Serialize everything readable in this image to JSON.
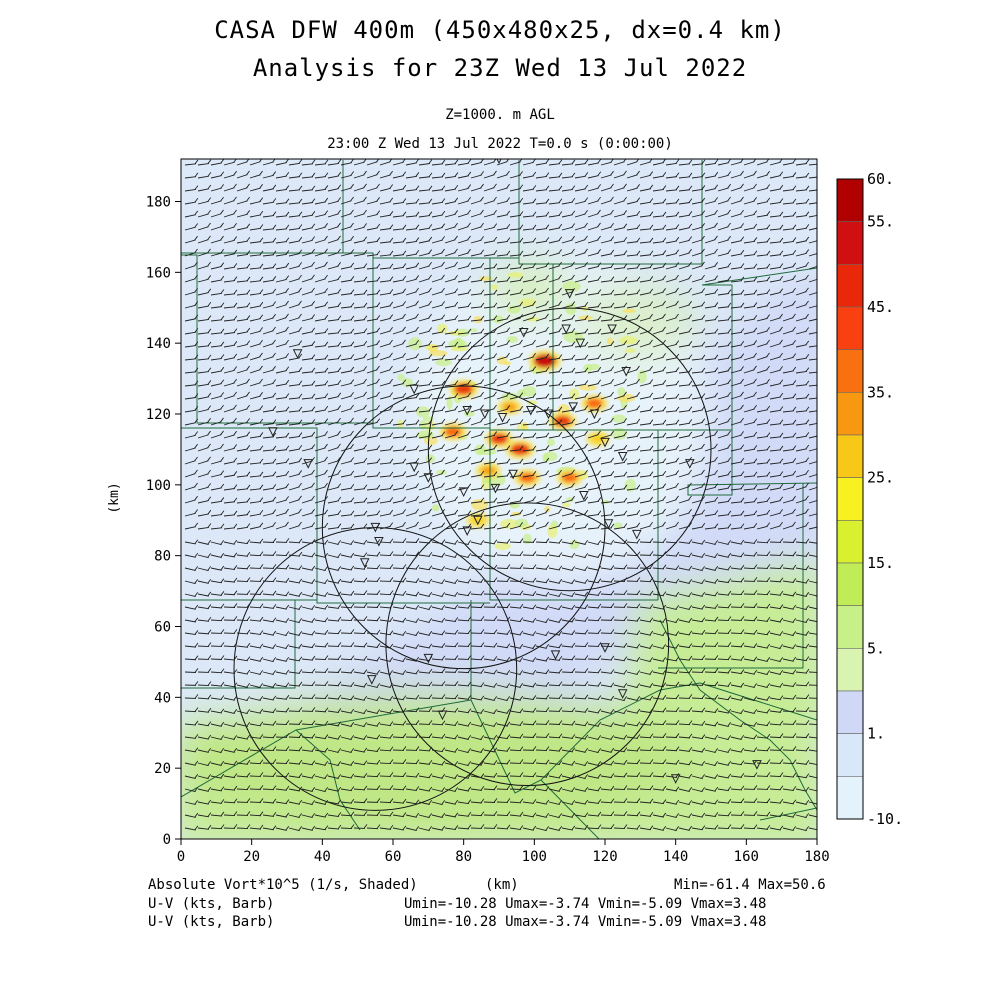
{
  "header": {
    "title1": "CASA DFW 400m (450x480x25, dx=0.4 km)",
    "title2": "Analysis for 23Z Wed 13 Jul 2022",
    "level": "Z=1000. m AGL",
    "time": "23:00 Z Wed 13 Jul 2022   T=0.0 s (0:00:00)"
  },
  "footer": {
    "field": "Absolute Vort*10^5 (1/s, Shaded)",
    "xunit": "(km)",
    "minmax": "Min=-61.4 Max=50.6",
    "barb1_name": "U-V (kts, Barb)",
    "barb1_stats": "Umin=-10.28 Umax=-3.74 Vmin=-5.09 Vmax=3.48",
    "barb2_name": "U-V (kts, Barb)",
    "barb2_stats": "Umin=-10.28 Umax=-3.74 Vmin=-5.09 Vmax=3.48"
  },
  "chart_data": {
    "type": "heatmap",
    "xlabel": "",
    "ylabel": "(km)",
    "xlim": [
      0,
      180
    ],
    "ylim": [
      0,
      192
    ],
    "xticks": [
      0,
      20,
      40,
      60,
      80,
      100,
      120,
      140,
      160,
      180
    ],
    "yticks": [
      0,
      20,
      40,
      60,
      80,
      100,
      120,
      140,
      160,
      180
    ],
    "colorbar": {
      "labels": [
        "60.",
        "55.",
        "45.",
        "35.",
        "25.",
        "15.",
        "5.",
        "1.",
        "-10."
      ],
      "colors": [
        "#b00000",
        "#d01010",
        "#e82808",
        "#f84010",
        "#f87010",
        "#f89810",
        "#f8c818",
        "#f8f020",
        "#d8f030",
        "#c0ec58",
        "#c8f088",
        "#d8f4b0",
        "#d0d8f8",
        "#d8e8f8",
        "#e4f2fb"
      ]
    },
    "radar_rings": [
      {
        "center_x": 110,
        "center_y": 110,
        "radius": 40
      },
      {
        "center_x": 80,
        "center_y": 88,
        "radius": 40
      },
      {
        "center_x": 98,
        "center_y": 55,
        "radius": 40
      },
      {
        "center_x": 55,
        "center_y": 48,
        "radius": 40
      }
    ],
    "stations": [
      [
        90,
        192
      ],
      [
        110,
        154
      ],
      [
        109,
        144
      ],
      [
        113,
        140
      ],
      [
        122,
        144
      ],
      [
        97,
        143
      ],
      [
        33,
        137
      ],
      [
        126,
        132
      ],
      [
        66,
        127
      ],
      [
        81,
        121
      ],
      [
        86,
        120
      ],
      [
        91,
        119
      ],
      [
        99,
        121
      ],
      [
        104,
        120
      ],
      [
        111,
        122
      ],
      [
        117,
        120
      ],
      [
        26,
        115
      ],
      [
        120,
        112
      ],
      [
        36,
        106
      ],
      [
        66,
        105
      ],
      [
        70,
        102
      ],
      [
        94,
        103
      ],
      [
        89,
        99
      ],
      [
        80,
        98
      ],
      [
        114,
        97
      ],
      [
        125,
        108
      ],
      [
        144,
        106
      ],
      [
        84,
        90
      ],
      [
        81,
        87
      ],
      [
        55,
        88
      ],
      [
        56,
        84
      ],
      [
        52,
        78
      ],
      [
        121,
        89
      ],
      [
        129,
        86
      ],
      [
        70,
        51
      ],
      [
        106,
        52
      ],
      [
        120,
        54
      ],
      [
        54,
        45
      ],
      [
        74,
        35
      ],
      [
        125,
        41
      ],
      [
        140,
        17
      ],
      [
        163,
        21
      ]
    ],
    "vorticity_cores": [
      {
        "x": 103,
        "y": 135,
        "value": 50
      },
      {
        "x": 96,
        "y": 110,
        "value": 40
      },
      {
        "x": 80,
        "y": 127,
        "value": 38
      },
      {
        "x": 90,
        "y": 113,
        "value": 35
      },
      {
        "x": 108,
        "y": 118,
        "value": 35
      },
      {
        "x": 77,
        "y": 115,
        "value": 32
      },
      {
        "x": 117,
        "y": 123,
        "value": 30
      },
      {
        "x": 98,
        "y": 102,
        "value": 30
      },
      {
        "x": 110,
        "y": 102,
        "value": 28
      },
      {
        "x": 87,
        "y": 104,
        "value": 25
      },
      {
        "x": 93,
        "y": 122,
        "value": 22
      },
      {
        "x": 118,
        "y": 113,
        "value": 20
      },
      {
        "x": 84,
        "y": 90,
        "value": 18
      }
    ]
  }
}
